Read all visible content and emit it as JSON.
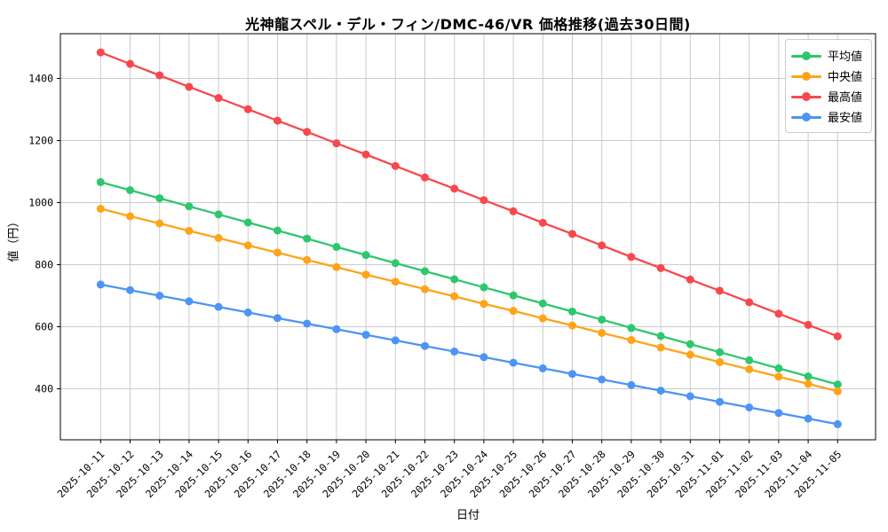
{
  "figure": {
    "background": "#ffffff",
    "frame_color": "#000000",
    "grid_color": "#cbcbcb"
  },
  "chart_data": {
    "type": "line",
    "title": "光神龍スペル・デル・フィン/DMC-46/VR 価格推移(過去30日間)",
    "xlabel": "日付",
    "ylabel": "値（円）",
    "grid": true,
    "legend_position": "upper right",
    "y_ticks": [
      400,
      600,
      800,
      1000,
      1200,
      1400
    ],
    "ylim": [
      233,
      1547
    ],
    "x_tick_labels": [
      "2025-10-11",
      "2025-10-12",
      "2025-10-13",
      "2025-10-14",
      "2025-10-15",
      "2025-10-16",
      "2025-10-17",
      "2025-10-18",
      "2025-10-19",
      "2025-10-20",
      "2025-10-21",
      "2025-10-22",
      "2025-10-23",
      "2025-10-24",
      "2025-10-25",
      "2025-10-26",
      "2025-10-27",
      "2025-10-28",
      "2025-10-29",
      "2025-10-30",
      "2025-10-31",
      "2025-11-01",
      "2025-11-02",
      "2025-11-03",
      "2025-11-04",
      "2025-11-05"
    ],
    "series": [
      {
        "key": "avg",
        "name": "平均値",
        "color": "#2dc76d",
        "values": [
          1066,
          1040,
          1014,
          988,
          962,
          936,
          910,
          884,
          857,
          831,
          805,
          779,
          753,
          727,
          701,
          675,
          649,
          623,
          596,
          570,
          544,
          518,
          492,
          466,
          440,
          414
        ]
      },
      {
        "key": "median",
        "name": "中央値",
        "color": "#ffa319",
        "values": [
          980,
          956,
          933,
          909,
          886,
          862,
          839,
          815,
          792,
          768,
          745,
          721,
          698,
          674,
          651,
          627,
          604,
          580,
          557,
          533,
          510,
          486,
          463,
          439,
          416,
          392
        ]
      },
      {
        "key": "max",
        "name": "最高値",
        "color": "#f8484e",
        "values": [
          1484,
          1447,
          1410,
          1373,
          1337,
          1301,
          1264,
          1228,
          1191,
          1155,
          1118,
          1081,
          1045,
          1008,
          972,
          935,
          899,
          862,
          825,
          789,
          752,
          716,
          679,
          642,
          606,
          569
        ]
      },
      {
        "key": "min",
        "name": "最安値",
        "color": "#4d94f5",
        "values": [
          736,
          718,
          700,
          682,
          664,
          646,
          628,
          610,
          592,
          574,
          556,
          538,
          520,
          502,
          484,
          466,
          448,
          430,
          412,
          394,
          376,
          358,
          340,
          322,
          304,
          286
        ]
      }
    ]
  }
}
